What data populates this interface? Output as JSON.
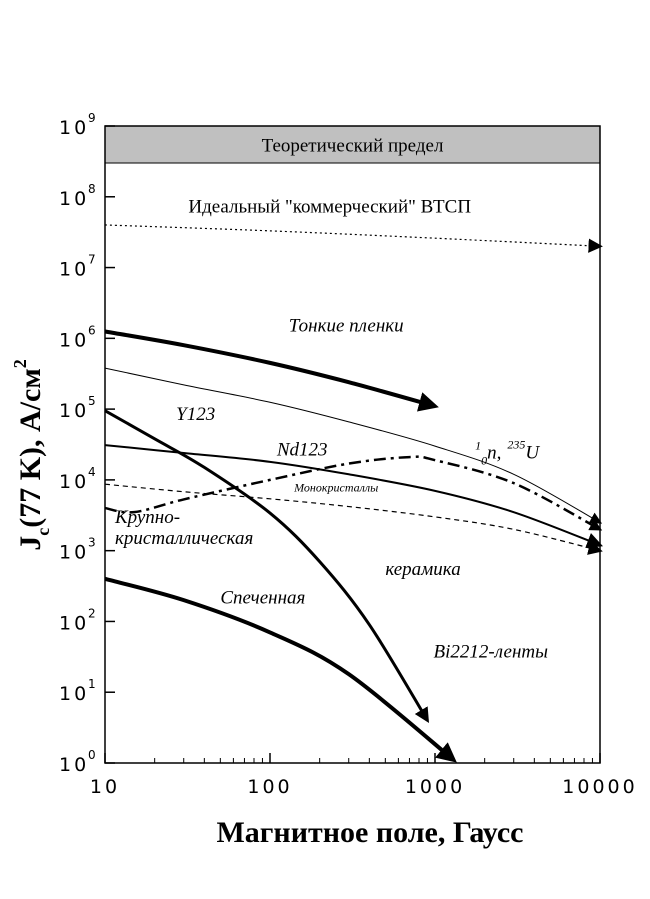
{
  "chart_data": {
    "type": "line",
    "xlabel": "Магнитное поле, Гаусс",
    "ylabel_main": "J",
    "ylabel_sub": "c",
    "ylabel_rest": "(77 K), А/см",
    "ylabel_sup": "2",
    "x_scale": "log",
    "y_scale": "log",
    "xlim": [
      10,
      10000
    ],
    "ylim": [
      1,
      1000000000
    ],
    "x_ticks": [
      "10",
      "100",
      "1000",
      "10000"
    ],
    "y_tick_base": "10",
    "y_tick_exponents": [
      "0",
      "1",
      "2",
      "3",
      "4",
      "5",
      "6",
      "7",
      "8",
      "9"
    ],
    "band": {
      "label": "Теоретический предел",
      "y_from": 300000000,
      "y_to": 1000000000,
      "color": "#c0c0c0"
    },
    "series": [
      {
        "id": "ideal",
        "style": "dotted-arrow",
        "x": [
          10,
          100,
          1000,
          10000
        ],
        "y": [
          40000000,
          33000000,
          26000000,
          20000000
        ]
      },
      {
        "id": "thin-films",
        "style": "thick-arrow",
        "x": [
          10,
          30,
          100,
          300,
          1000
        ],
        "y": [
          1250000,
          800000,
          450000,
          240000,
          110000
        ]
      },
      {
        "id": "neutron",
        "style": "thin-arrow",
        "x": [
          10,
          30,
          100,
          300,
          1000,
          3000,
          10000
        ],
        "y": [
          380000,
          220000,
          125000,
          66000,
          30000,
          12000,
          2500
        ]
      },
      {
        "id": "y123",
        "style": "arrow",
        "x": [
          10,
          20,
          40,
          100,
          200,
          400,
          900
        ],
        "y": [
          95000,
          38000,
          15000,
          3400,
          700,
          90,
          4
        ]
      },
      {
        "id": "nd123",
        "style": "dashdot-arrow",
        "x": [
          10,
          15,
          30,
          100,
          300,
          700,
          1000,
          3000,
          10000
        ],
        "y": [
          4000,
          3500,
          5300,
          10000,
          17000,
          21000,
          19000,
          9000,
          2000
        ]
      },
      {
        "id": "monocrystals",
        "style": "dashed-arrow",
        "x": [
          10,
          30,
          100,
          300,
          1000,
          3000,
          10000
        ],
        "y": [
          8700,
          6800,
          5400,
          4200,
          3000,
          2000,
          1000
        ]
      },
      {
        "id": "large-grain",
        "style": "solid-arrow",
        "x": [
          10,
          30,
          100,
          300,
          1000,
          3000,
          10000
        ],
        "y": [
          31000,
          24000,
          18000,
          12000,
          7000,
          3500,
          1200
        ]
      },
      {
        "id": "sintered",
        "style": "thick-arrow",
        "x": [
          10,
          30,
          100,
          300,
          1300
        ],
        "y": [
          400,
          200,
          70,
          18,
          1.1
        ]
      }
    ],
    "annotations": [
      {
        "id": "ideal-label",
        "text": "Идеальный \"коммерческий\" ВТСП",
        "x": 32,
        "y": 60000000,
        "class": "ann-up"
      },
      {
        "id": "thin-films-label",
        "text": "Тонкие пленки",
        "x": 130,
        "y": 1250000,
        "class": "ann"
      },
      {
        "id": "y123-label",
        "text": "Y123",
        "x": 27,
        "y": 70000,
        "class": "ann"
      },
      {
        "id": "nd123-label",
        "text": "Nd123",
        "x": 110,
        "y": 22000,
        "class": "ann"
      },
      {
        "id": "mono-label",
        "text": "Монокристаллы",
        "x": 140,
        "y": 6800,
        "class": "ann-small"
      },
      {
        "id": "large-grain-label-1",
        "text": "Крупно-",
        "x": 11.5,
        "y": 2450,
        "class": "ann"
      },
      {
        "id": "large-grain-label-2",
        "text": "кристаллическая",
        "x": 11.5,
        "y": 1250,
        "class": "ann"
      },
      {
        "id": "ceramics-label",
        "text": "керамика",
        "x": 500,
        "y": 450,
        "class": "ann"
      },
      {
        "id": "sintered-label",
        "text": "Спеченная",
        "x": 50,
        "y": 180,
        "class": "ann"
      },
      {
        "id": "bi2212-label",
        "text": "Bi2212-ленты",
        "x": 980,
        "y": 31,
        "class": "ann"
      }
    ],
    "neutron_label": {
      "sup1": "1",
      "sub0": "0",
      "n": "n,",
      "sup235": "235",
      "u": "U",
      "x": 1750,
      "y": 20000
    },
    "grid": false
  }
}
